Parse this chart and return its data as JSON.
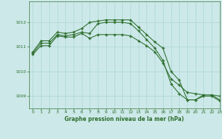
{
  "xlabel": "Graphe pression niveau de la mer (hPa)",
  "bg_color": "#cce8e8",
  "grid_color": "#aad4d4",
  "line_color": "#2d6e2d",
  "marker": "+",
  "xlim": [
    -0.5,
    23
  ],
  "ylim": [
    1008.5,
    1012.85
  ],
  "yticks": [
    1009,
    1010,
    1011,
    1012
  ],
  "xticks": [
    0,
    1,
    2,
    3,
    4,
    5,
    6,
    7,
    8,
    9,
    10,
    11,
    12,
    13,
    14,
    15,
    16,
    17,
    18,
    19,
    20,
    21,
    22,
    23
  ],
  "series1": [
    1010.8,
    1011.25,
    1011.25,
    1011.6,
    1011.55,
    1011.6,
    1011.75,
    1012.0,
    1012.05,
    1012.1,
    1012.1,
    1012.1,
    1012.1,
    1011.8,
    1011.5,
    1011.2,
    1010.95,
    1010.0,
    1009.65,
    1008.85,
    1008.85,
    1009.05,
    1009.05,
    1008.85
  ],
  "series2": [
    1010.75,
    1011.15,
    1011.15,
    1011.5,
    1011.45,
    1011.5,
    1011.6,
    1011.55,
    1011.95,
    1012.0,
    1012.0,
    1012.0,
    1011.95,
    1011.65,
    1011.3,
    1010.95,
    1010.45,
    1009.5,
    1009.1,
    1008.85,
    1008.85,
    1009.0,
    1009.0,
    1008.8
  ],
  "series3": [
    1010.7,
    1011.05,
    1011.05,
    1011.45,
    1011.4,
    1011.4,
    1011.55,
    1011.35,
    1011.5,
    1011.5,
    1011.5,
    1011.5,
    1011.45,
    1011.25,
    1011.05,
    1010.8,
    1010.35,
    1009.7,
    1009.45,
    1009.15,
    1009.1,
    1009.05,
    1009.05,
    1009.0
  ]
}
